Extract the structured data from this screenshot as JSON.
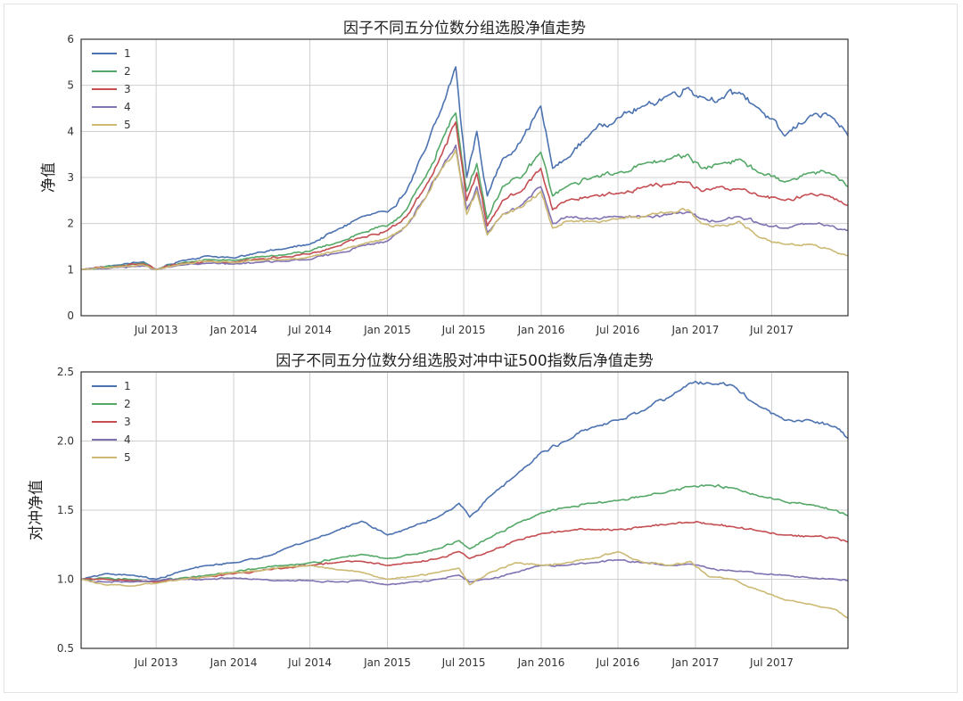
{
  "chart_data": [
    {
      "type": "line",
      "title": "因子不同五分位数分组选股净值走势",
      "xlabel": "",
      "ylabel": "净值",
      "xlim": [
        "2013-01-04",
        "2017-12-29"
      ],
      "ylim": [
        0,
        6
      ],
      "yticks": [
        0,
        1,
        2,
        3,
        4,
        5,
        6
      ],
      "ytick_labels": [
        "0",
        "1",
        "2",
        "3",
        "4",
        "5",
        "6"
      ],
      "xticks": [
        "2013-07-01",
        "2014-01-01",
        "2014-07-01",
        "2015-01-01",
        "2015-07-01",
        "2016-01-01",
        "2016-07-01",
        "2017-01-01",
        "2017-07-01"
      ],
      "xtick_labels": [
        "Jul 2013",
        "Jan 2014",
        "Jul 2014",
        "Jan 2015",
        "Jul 2015",
        "Jan 2016",
        "Jul 2016",
        "Jan 2017",
        "Jul 2017"
      ],
      "grid": true,
      "legend": "top-left",
      "x": [
        "2013-01-04",
        "2013-04-01",
        "2013-06-01",
        "2013-07-01",
        "2013-09-01",
        "2013-11-01",
        "2014-01-01",
        "2014-03-01",
        "2014-05-01",
        "2014-07-01",
        "2014-09-01",
        "2014-11-01",
        "2015-01-01",
        "2015-02-15",
        "2015-04-01",
        "2015-05-10",
        "2015-06-12",
        "2015-07-08",
        "2015-08-01",
        "2015-08-26",
        "2015-10-01",
        "2015-11-15",
        "2015-12-31",
        "2016-01-28",
        "2016-03-01",
        "2016-05-01",
        "2016-07-01",
        "2016-09-01",
        "2016-11-01",
        "2016-12-15",
        "2017-01-15",
        "2017-03-01",
        "2017-04-15",
        "2017-06-01",
        "2017-08-01",
        "2017-10-01",
        "2017-11-15",
        "2017-12-29"
      ],
      "series": [
        {
          "name": "1",
          "color": "#4C72B0",
          "values": [
            1.0,
            1.1,
            1.17,
            1.0,
            1.2,
            1.3,
            1.25,
            1.38,
            1.45,
            1.55,
            1.85,
            2.15,
            2.25,
            2.7,
            3.6,
            4.5,
            5.4,
            3.0,
            4.0,
            2.6,
            3.4,
            3.8,
            4.55,
            3.2,
            3.4,
            4.0,
            4.3,
            4.55,
            4.8,
            4.95,
            4.75,
            4.7,
            4.85,
            4.5,
            3.9,
            4.35,
            4.35,
            3.9
          ]
        },
        {
          "name": "2",
          "color": "#55A868",
          "values": [
            1.0,
            1.08,
            1.14,
            1.0,
            1.15,
            1.22,
            1.2,
            1.28,
            1.32,
            1.4,
            1.58,
            1.8,
            1.95,
            2.3,
            3.0,
            3.8,
            4.4,
            2.7,
            3.3,
            2.1,
            2.8,
            3.0,
            3.55,
            2.6,
            2.8,
            3.0,
            3.1,
            3.3,
            3.4,
            3.5,
            3.2,
            3.3,
            3.4,
            3.1,
            2.9,
            3.1,
            3.1,
            2.8
          ]
        },
        {
          "name": "3",
          "color": "#C44E52",
          "values": [
            1.0,
            1.07,
            1.12,
            1.0,
            1.13,
            1.19,
            1.16,
            1.23,
            1.28,
            1.34,
            1.5,
            1.7,
            1.85,
            2.15,
            2.8,
            3.5,
            4.2,
            2.5,
            3.1,
            1.95,
            2.5,
            2.7,
            3.2,
            2.3,
            2.5,
            2.6,
            2.65,
            2.8,
            2.85,
            2.9,
            2.7,
            2.8,
            2.75,
            2.6,
            2.5,
            2.65,
            2.6,
            2.4
          ]
        },
        {
          "name": "4",
          "color": "#8172B2",
          "values": [
            1.0,
            1.05,
            1.08,
            1.0,
            1.1,
            1.14,
            1.12,
            1.16,
            1.18,
            1.22,
            1.35,
            1.52,
            1.62,
            1.95,
            2.55,
            3.2,
            3.7,
            2.3,
            2.8,
            1.8,
            2.2,
            2.4,
            2.8,
            2.0,
            2.15,
            2.1,
            2.15,
            2.15,
            2.2,
            2.25,
            2.1,
            2.05,
            2.15,
            2.0,
            1.9,
            2.0,
            1.95,
            1.85
          ]
        },
        {
          "name": "5",
          "color": "#CCB974",
          "values": [
            1.0,
            1.06,
            1.1,
            1.0,
            1.12,
            1.18,
            1.15,
            1.2,
            1.22,
            1.28,
            1.4,
            1.55,
            1.68,
            1.95,
            2.55,
            3.2,
            3.6,
            2.2,
            2.7,
            1.75,
            2.2,
            2.35,
            2.7,
            1.9,
            2.05,
            2.05,
            2.1,
            2.15,
            2.25,
            2.3,
            2.0,
            1.95,
            2.05,
            1.7,
            1.55,
            1.55,
            1.45,
            1.3
          ]
        }
      ]
    },
    {
      "type": "line",
      "title": "因子不同五分位数分组选股对冲中证500指数后净值走势",
      "xlabel": "",
      "ylabel": "对冲净值",
      "xlim": [
        "2013-01-04",
        "2017-12-29"
      ],
      "ylim": [
        0.5,
        2.5
      ],
      "yticks": [
        0.5,
        1.0,
        1.5,
        2.0,
        2.5
      ],
      "ytick_labels": [
        "0.5",
        "1.0",
        "1.5",
        "2.0",
        "2.5"
      ],
      "xticks": [
        "2013-07-01",
        "2014-01-01",
        "2014-07-01",
        "2015-01-01",
        "2015-07-01",
        "2016-01-01",
        "2016-07-01",
        "2017-01-01",
        "2017-07-01"
      ],
      "xtick_labels": [
        "Jul 2013",
        "Jan 2014",
        "Jul 2014",
        "Jan 2015",
        "Jul 2015",
        "Jan 2016",
        "Jul 2016",
        "Jan 2017",
        "Jul 2017"
      ],
      "grid": true,
      "legend": "top-left",
      "x": [
        "2013-01-04",
        "2013-03-01",
        "2013-05-01",
        "2013-07-01",
        "2013-09-01",
        "2013-11-01",
        "2014-01-01",
        "2014-03-01",
        "2014-05-01",
        "2014-07-01",
        "2014-09-01",
        "2014-11-01",
        "2015-01-01",
        "2015-03-01",
        "2015-05-01",
        "2015-06-20",
        "2015-07-15",
        "2015-09-01",
        "2015-11-01",
        "2016-01-01",
        "2016-03-01",
        "2016-05-01",
        "2016-07-01",
        "2016-09-01",
        "2016-11-01",
        "2016-12-20",
        "2017-02-01",
        "2017-04-01",
        "2017-06-01",
        "2017-08-01",
        "2017-10-01",
        "2017-12-01",
        "2017-12-29"
      ],
      "series": [
        {
          "name": "1",
          "color": "#4C72B0",
          "values": [
            1.0,
            1.04,
            1.03,
            1.0,
            1.06,
            1.1,
            1.12,
            1.15,
            1.22,
            1.28,
            1.35,
            1.42,
            1.32,
            1.38,
            1.45,
            1.55,
            1.45,
            1.6,
            1.75,
            1.92,
            2.0,
            2.1,
            2.15,
            2.22,
            2.32,
            2.42,
            2.42,
            2.4,
            2.25,
            2.15,
            2.15,
            2.1,
            2.02
          ]
        },
        {
          "name": "2",
          "color": "#55A868",
          "values": [
            1.0,
            1.01,
            1.0,
            0.98,
            1.01,
            1.03,
            1.05,
            1.08,
            1.1,
            1.12,
            1.15,
            1.18,
            1.15,
            1.18,
            1.22,
            1.28,
            1.22,
            1.3,
            1.4,
            1.48,
            1.52,
            1.55,
            1.57,
            1.6,
            1.64,
            1.67,
            1.68,
            1.66,
            1.6,
            1.56,
            1.54,
            1.5,
            1.46
          ]
        },
        {
          "name": "3",
          "color": "#C44E52",
          "values": [
            1.0,
            1.0,
            0.99,
            0.98,
            1.0,
            1.02,
            1.04,
            1.06,
            1.08,
            1.1,
            1.12,
            1.13,
            1.1,
            1.12,
            1.15,
            1.2,
            1.15,
            1.2,
            1.28,
            1.33,
            1.35,
            1.36,
            1.36,
            1.38,
            1.4,
            1.41,
            1.4,
            1.38,
            1.35,
            1.32,
            1.31,
            1.3,
            1.27
          ]
        },
        {
          "name": "4",
          "color": "#8172B2",
          "values": [
            1.0,
            0.98,
            0.98,
            0.99,
            1.0,
            1.0,
            1.01,
            1.0,
            0.99,
            0.99,
            0.98,
            0.99,
            0.96,
            0.98,
            1.0,
            1.03,
            0.98,
            1.0,
            1.05,
            1.1,
            1.1,
            1.12,
            1.14,
            1.12,
            1.1,
            1.11,
            1.08,
            1.06,
            1.04,
            1.03,
            1.01,
            1.0,
            0.99
          ]
        },
        {
          "name": "5",
          "color": "#CCB974",
          "values": [
            1.0,
            0.96,
            0.95,
            0.97,
            1.0,
            1.02,
            1.05,
            1.06,
            1.09,
            1.1,
            1.07,
            1.05,
            1.0,
            1.02,
            1.05,
            1.08,
            0.96,
            1.05,
            1.12,
            1.1,
            1.12,
            1.15,
            1.2,
            1.12,
            1.1,
            1.13,
            1.02,
            1.0,
            0.92,
            0.85,
            0.82,
            0.78,
            0.72
          ]
        }
      ]
    }
  ]
}
